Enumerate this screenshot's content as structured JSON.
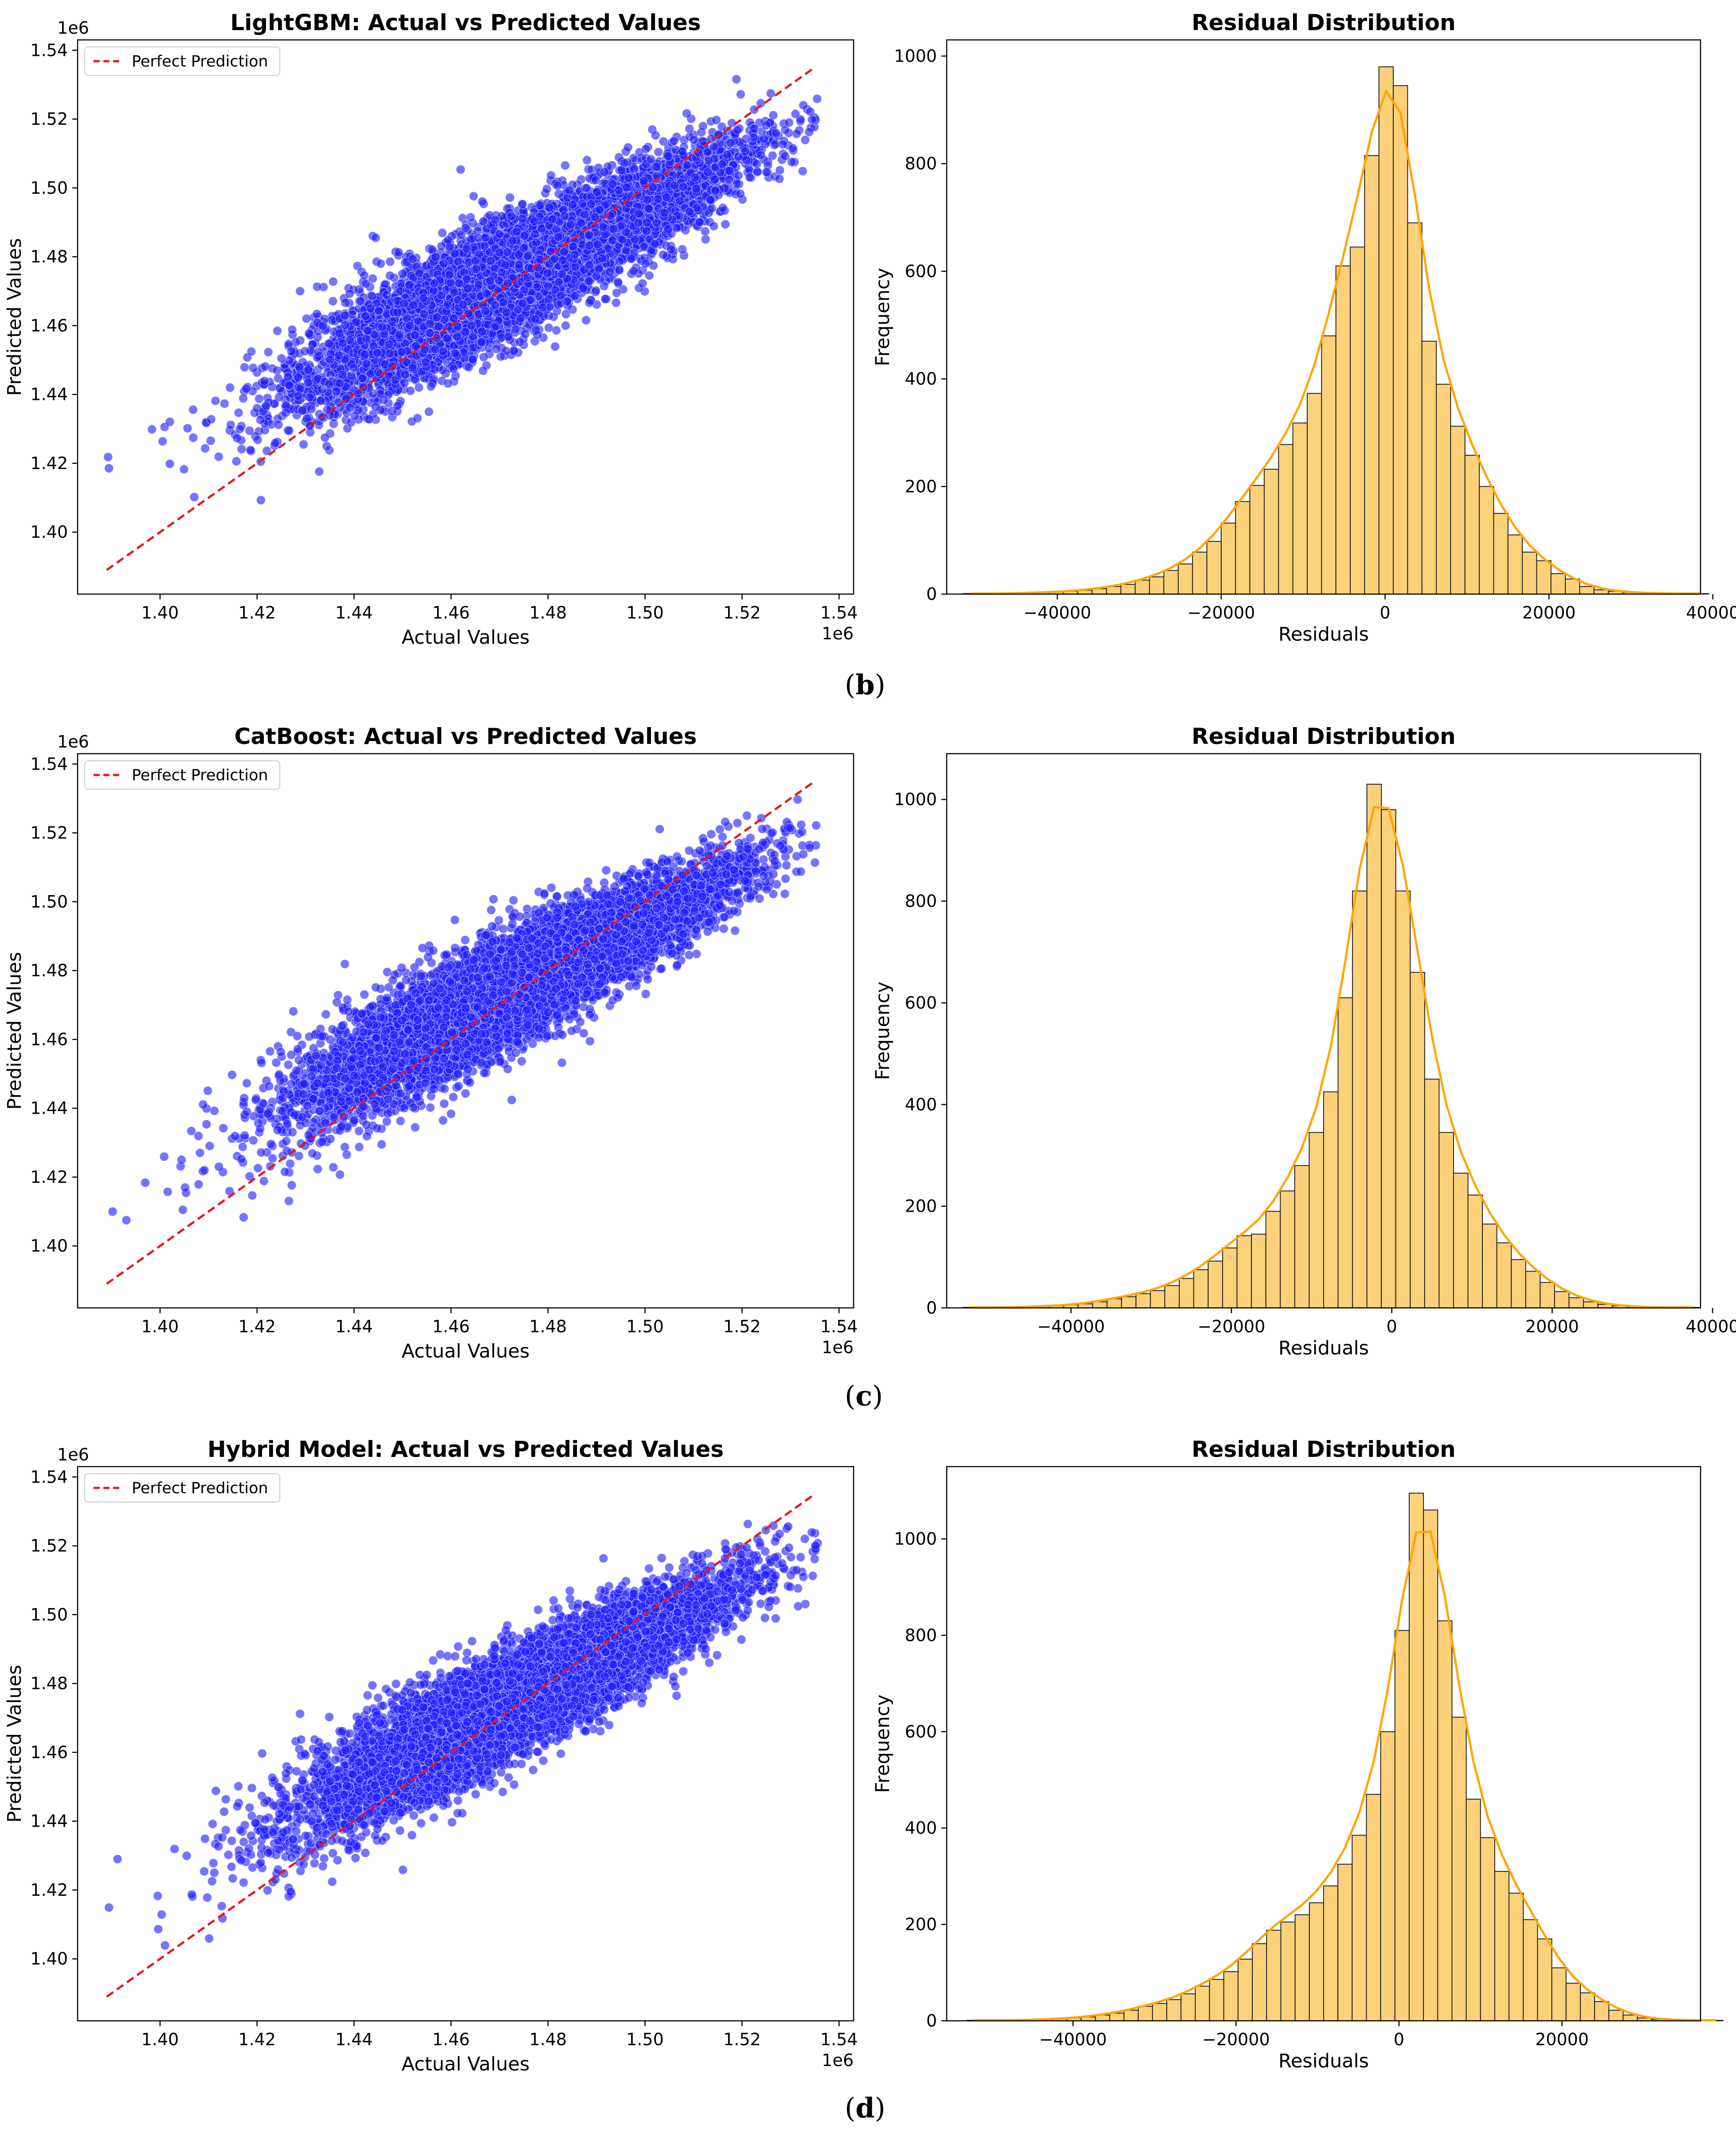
{
  "panel_labels": [
    {
      "open": "(",
      "letter": "b",
      "close": ")"
    },
    {
      "open": "(",
      "letter": "c",
      "close": ")"
    },
    {
      "open": "(",
      "letter": "d",
      "close": ")"
    }
  ],
  "chart_data": [
    {
      "type": "scatter",
      "panel": "b",
      "title": "LightGBM: Actual vs Predicted Values",
      "xlabel": "Actual Values",
      "ylabel": "Predicted Values",
      "x_offset_label": "1e6",
      "y_offset_label": "1e6",
      "xlim": [
        1.383,
        1.543
      ],
      "ylim": [
        1.382,
        1.543
      ],
      "xticks": [
        1.4,
        1.42,
        1.44,
        1.46,
        1.48,
        1.5,
        1.52,
        1.54
      ],
      "yticks": [
        1.4,
        1.42,
        1.44,
        1.46,
        1.48,
        1.5,
        1.52,
        1.54
      ],
      "tick_labels_x": [
        "1.40",
        "1.42",
        "1.44",
        "1.46",
        "1.48",
        "1.50",
        "1.52",
        "1.54"
      ],
      "tick_labels_y": [
        "1.40",
        "1.42",
        "1.44",
        "1.46",
        "1.48",
        "1.50",
        "1.52",
        "1.54"
      ],
      "legend": {
        "label": "Perfect Prediction",
        "placement": "top-left"
      },
      "reference_line": {
        "from": [
          1.389,
          1.389
        ],
        "to": [
          1.535,
          1.535
        ],
        "style": "dashed",
        "color": "#e31a1c"
      },
      "point_color": "#1f1fff",
      "n_points": 9000,
      "trend": {
        "slope": 0.72,
        "intercept_at_1.46": 1.4655
      },
      "noise_sd": 0.0105,
      "x_range": [
        1.389,
        1.536
      ]
    },
    {
      "type": "histogram",
      "panel": "b",
      "title": "Residual Distribution",
      "xlabel": "Residuals",
      "ylabel": "Frequency",
      "xlim": [
        -53500,
        38500
      ],
      "ylim": [
        0,
        1030
      ],
      "xticks": [
        -40000,
        -20000,
        0,
        20000,
        40000
      ],
      "tick_labels_x": [
        "−40000",
        "−20000",
        "0",
        "20000",
        "40000"
      ],
      "yticks": [
        0,
        200,
        400,
        600,
        800,
        1000
      ],
      "tick_labels_y": [
        "0",
        "200",
        "400",
        "600",
        "800",
        "1000"
      ],
      "bin_start": -51500,
      "bin_width": 1750,
      "counts": [
        1,
        1,
        1,
        1,
        2,
        3,
        4,
        5,
        7,
        10,
        14,
        18,
        26,
        32,
        44,
        56,
        78,
        98,
        132,
        172,
        202,
        232,
        278,
        318,
        373,
        480,
        610,
        645,
        815,
        980,
        945,
        690,
        470,
        390,
        312,
        258,
        200,
        150,
        110,
        78,
        62,
        38,
        28,
        14,
        8,
        5,
        3,
        2,
        1,
        1,
        1,
        1
      ],
      "kde_peak": 935,
      "bar_color": "#fdd17a",
      "kde_color": "#ffa500"
    },
    {
      "type": "scatter",
      "panel": "c",
      "title": "CatBoost: Actual vs Predicted Values",
      "xlabel": "Actual Values",
      "ylabel": "Predicted Values",
      "x_offset_label": "1e6",
      "y_offset_label": "1e6",
      "xlim": [
        1.383,
        1.543
      ],
      "ylim": [
        1.382,
        1.543
      ],
      "xticks": [
        1.4,
        1.42,
        1.44,
        1.46,
        1.48,
        1.5,
        1.52,
        1.54
      ],
      "yticks": [
        1.4,
        1.42,
        1.44,
        1.46,
        1.48,
        1.5,
        1.52,
        1.54
      ],
      "tick_labels_x": [
        "1.40",
        "1.42",
        "1.44",
        "1.46",
        "1.48",
        "1.50",
        "1.52",
        "1.54"
      ],
      "tick_labels_y": [
        "1.40",
        "1.42",
        "1.44",
        "1.46",
        "1.48",
        "1.50",
        "1.52",
        "1.54"
      ],
      "legend": {
        "label": "Perfect Prediction",
        "placement": "top-left"
      },
      "reference_line": {
        "from": [
          1.389,
          1.389
        ],
        "to": [
          1.535,
          1.535
        ],
        "style": "dashed",
        "color": "#e31a1c"
      },
      "point_color": "#1f1fff",
      "n_points": 9000,
      "trend": {
        "slope": 0.72,
        "intercept_at_1.46": 1.4655
      },
      "noise_sd": 0.0103,
      "x_range": [
        1.389,
        1.536
      ]
    },
    {
      "type": "histogram",
      "panel": "c",
      "title": "Residual Distribution",
      "xlabel": "Residuals",
      "ylabel": "Frequency",
      "xlim": [
        -55500,
        38500
      ],
      "ylim": [
        0,
        1090
      ],
      "xticks": [
        -40000,
        -20000,
        0,
        20000,
        40000
      ],
      "tick_labels_x": [
        "−40000",
        "−20000",
        "0",
        "20000",
        "40000"
      ],
      "yticks": [
        0,
        200,
        400,
        600,
        800,
        1000
      ],
      "tick_labels_y": [
        "0",
        "200",
        "400",
        "600",
        "800",
        "1000"
      ],
      "bin_start": -53500,
      "bin_width": 1800,
      "counts": [
        1,
        1,
        1,
        1,
        2,
        3,
        4,
        6,
        8,
        12,
        18,
        22,
        28,
        34,
        44,
        58,
        75,
        92,
        118,
        142,
        145,
        190,
        230,
        280,
        345,
        425,
        610,
        820,
        1030,
        980,
        820,
        660,
        450,
        345,
        265,
        222,
        165,
        128,
        95,
        72,
        50,
        32,
        20,
        12,
        7,
        4,
        2,
        1,
        1,
        1,
        1
      ],
      "kde_peak": 985,
      "bar_color": "#fdd17a",
      "kde_color": "#ffa500"
    },
    {
      "type": "scatter",
      "panel": "d",
      "title": "Hybrid Model: Actual vs Predicted Values",
      "xlabel": "Actual Values",
      "ylabel": "Predicted Values",
      "x_offset_label": "1e6",
      "y_offset_label": "1e6",
      "xlim": [
        1.383,
        1.543
      ],
      "ylim": [
        1.382,
        1.543
      ],
      "xticks": [
        1.4,
        1.42,
        1.44,
        1.46,
        1.48,
        1.5,
        1.52,
        1.54
      ],
      "yticks": [
        1.4,
        1.42,
        1.44,
        1.46,
        1.48,
        1.5,
        1.52,
        1.54
      ],
      "tick_labels_x": [
        "1.40",
        "1.42",
        "1.44",
        "1.46",
        "1.48",
        "1.50",
        "1.52",
        "1.54"
      ],
      "tick_labels_y": [
        "1.40",
        "1.42",
        "1.44",
        "1.46",
        "1.48",
        "1.50",
        "1.52",
        "1.54"
      ],
      "legend": {
        "label": "Perfect Prediction",
        "placement": "top-left"
      },
      "reference_line": {
        "from": [
          1.389,
          1.389
        ],
        "to": [
          1.535,
          1.535
        ],
        "style": "dashed",
        "color": "#e31a1c"
      },
      "point_color": "#1f1fff",
      "n_points": 9000,
      "trend": {
        "slope": 0.72,
        "intercept_at_1.46": 1.4655
      },
      "noise_sd": 0.0102,
      "x_range": [
        1.389,
        1.536
      ]
    },
    {
      "type": "histogram",
      "panel": "d",
      "title": "Residual Distribution",
      "xlabel": "Residuals",
      "ylabel": "Frequency",
      "xlim": [
        -55500,
        37000
      ],
      "ylim": [
        0,
        1150
      ],
      "xticks": [
        -40000,
        -20000,
        0,
        20000
      ],
      "tick_labels_x": [
        "−40000",
        "−20000",
        "0",
        "20000"
      ],
      "yticks": [
        0,
        200,
        400,
        600,
        800,
        1000
      ],
      "tick_labels_y": [
        "0",
        "200",
        "400",
        "600",
        "800",
        "1000"
      ],
      "bin_start": -53000,
      "bin_width": 1750,
      "counts": [
        1,
        1,
        1,
        1,
        2,
        3,
        4,
        6,
        8,
        12,
        16,
        22,
        30,
        36,
        44,
        56,
        72,
        86,
        102,
        128,
        160,
        188,
        205,
        220,
        245,
        280,
        325,
        385,
        470,
        600,
        810,
        1095,
        1060,
        830,
        630,
        460,
        380,
        310,
        265,
        210,
        170,
        110,
        78,
        58,
        40,
        22,
        12,
        6,
        3,
        2,
        1,
        1,
        1
      ],
      "kde_peak": 1015,
      "bar_color": "#fdd17a",
      "kde_color": "#ffa500"
    }
  ]
}
